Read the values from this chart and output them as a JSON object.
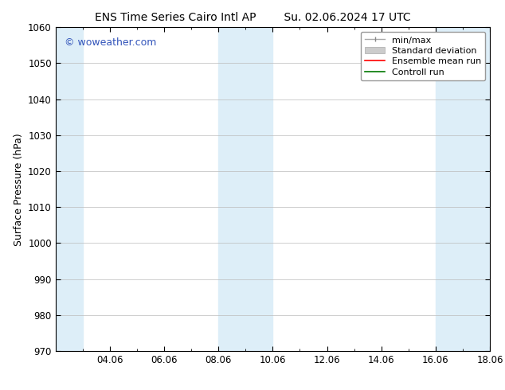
{
  "title_left": "ENS Time Series Cairo Intl AP",
  "title_right": "Su. 02.06.2024 17 UTC",
  "ylabel": "Surface Pressure (hPa)",
  "ylim": [
    970,
    1060
  ],
  "yticks": [
    970,
    980,
    990,
    1000,
    1010,
    1020,
    1030,
    1040,
    1050,
    1060
  ],
  "xlim": [
    0,
    16
  ],
  "xtick_labels": [
    "04.06",
    "06.06",
    "08.06",
    "10.06",
    "12.06",
    "14.06",
    "16.06",
    "18.06"
  ],
  "xtick_positions_days": [
    2,
    4,
    6,
    8,
    10,
    12,
    14,
    16
  ],
  "watermark": "© woweather.com",
  "watermark_color": "#3355bb",
  "background_color": "#ffffff",
  "plot_bg_color": "#ffffff",
  "shaded_regions": [
    {
      "x_start_day": 0.0,
      "x_end_day": 1.0,
      "color": "#ddeef8"
    },
    {
      "x_start_day": 6.0,
      "x_end_day": 8.0,
      "color": "#ddeef8"
    },
    {
      "x_start_day": 14.0,
      "x_end_day": 16.0,
      "color": "#ddeef8"
    }
  ],
  "font_family": "DejaVu Sans",
  "title_fontsize": 10,
  "tick_fontsize": 8.5,
  "ylabel_fontsize": 9,
  "legend_fontsize": 8,
  "grid_color": "#bbbbbb",
  "spine_color": "#000000",
  "legend_edge_color": "#999999"
}
